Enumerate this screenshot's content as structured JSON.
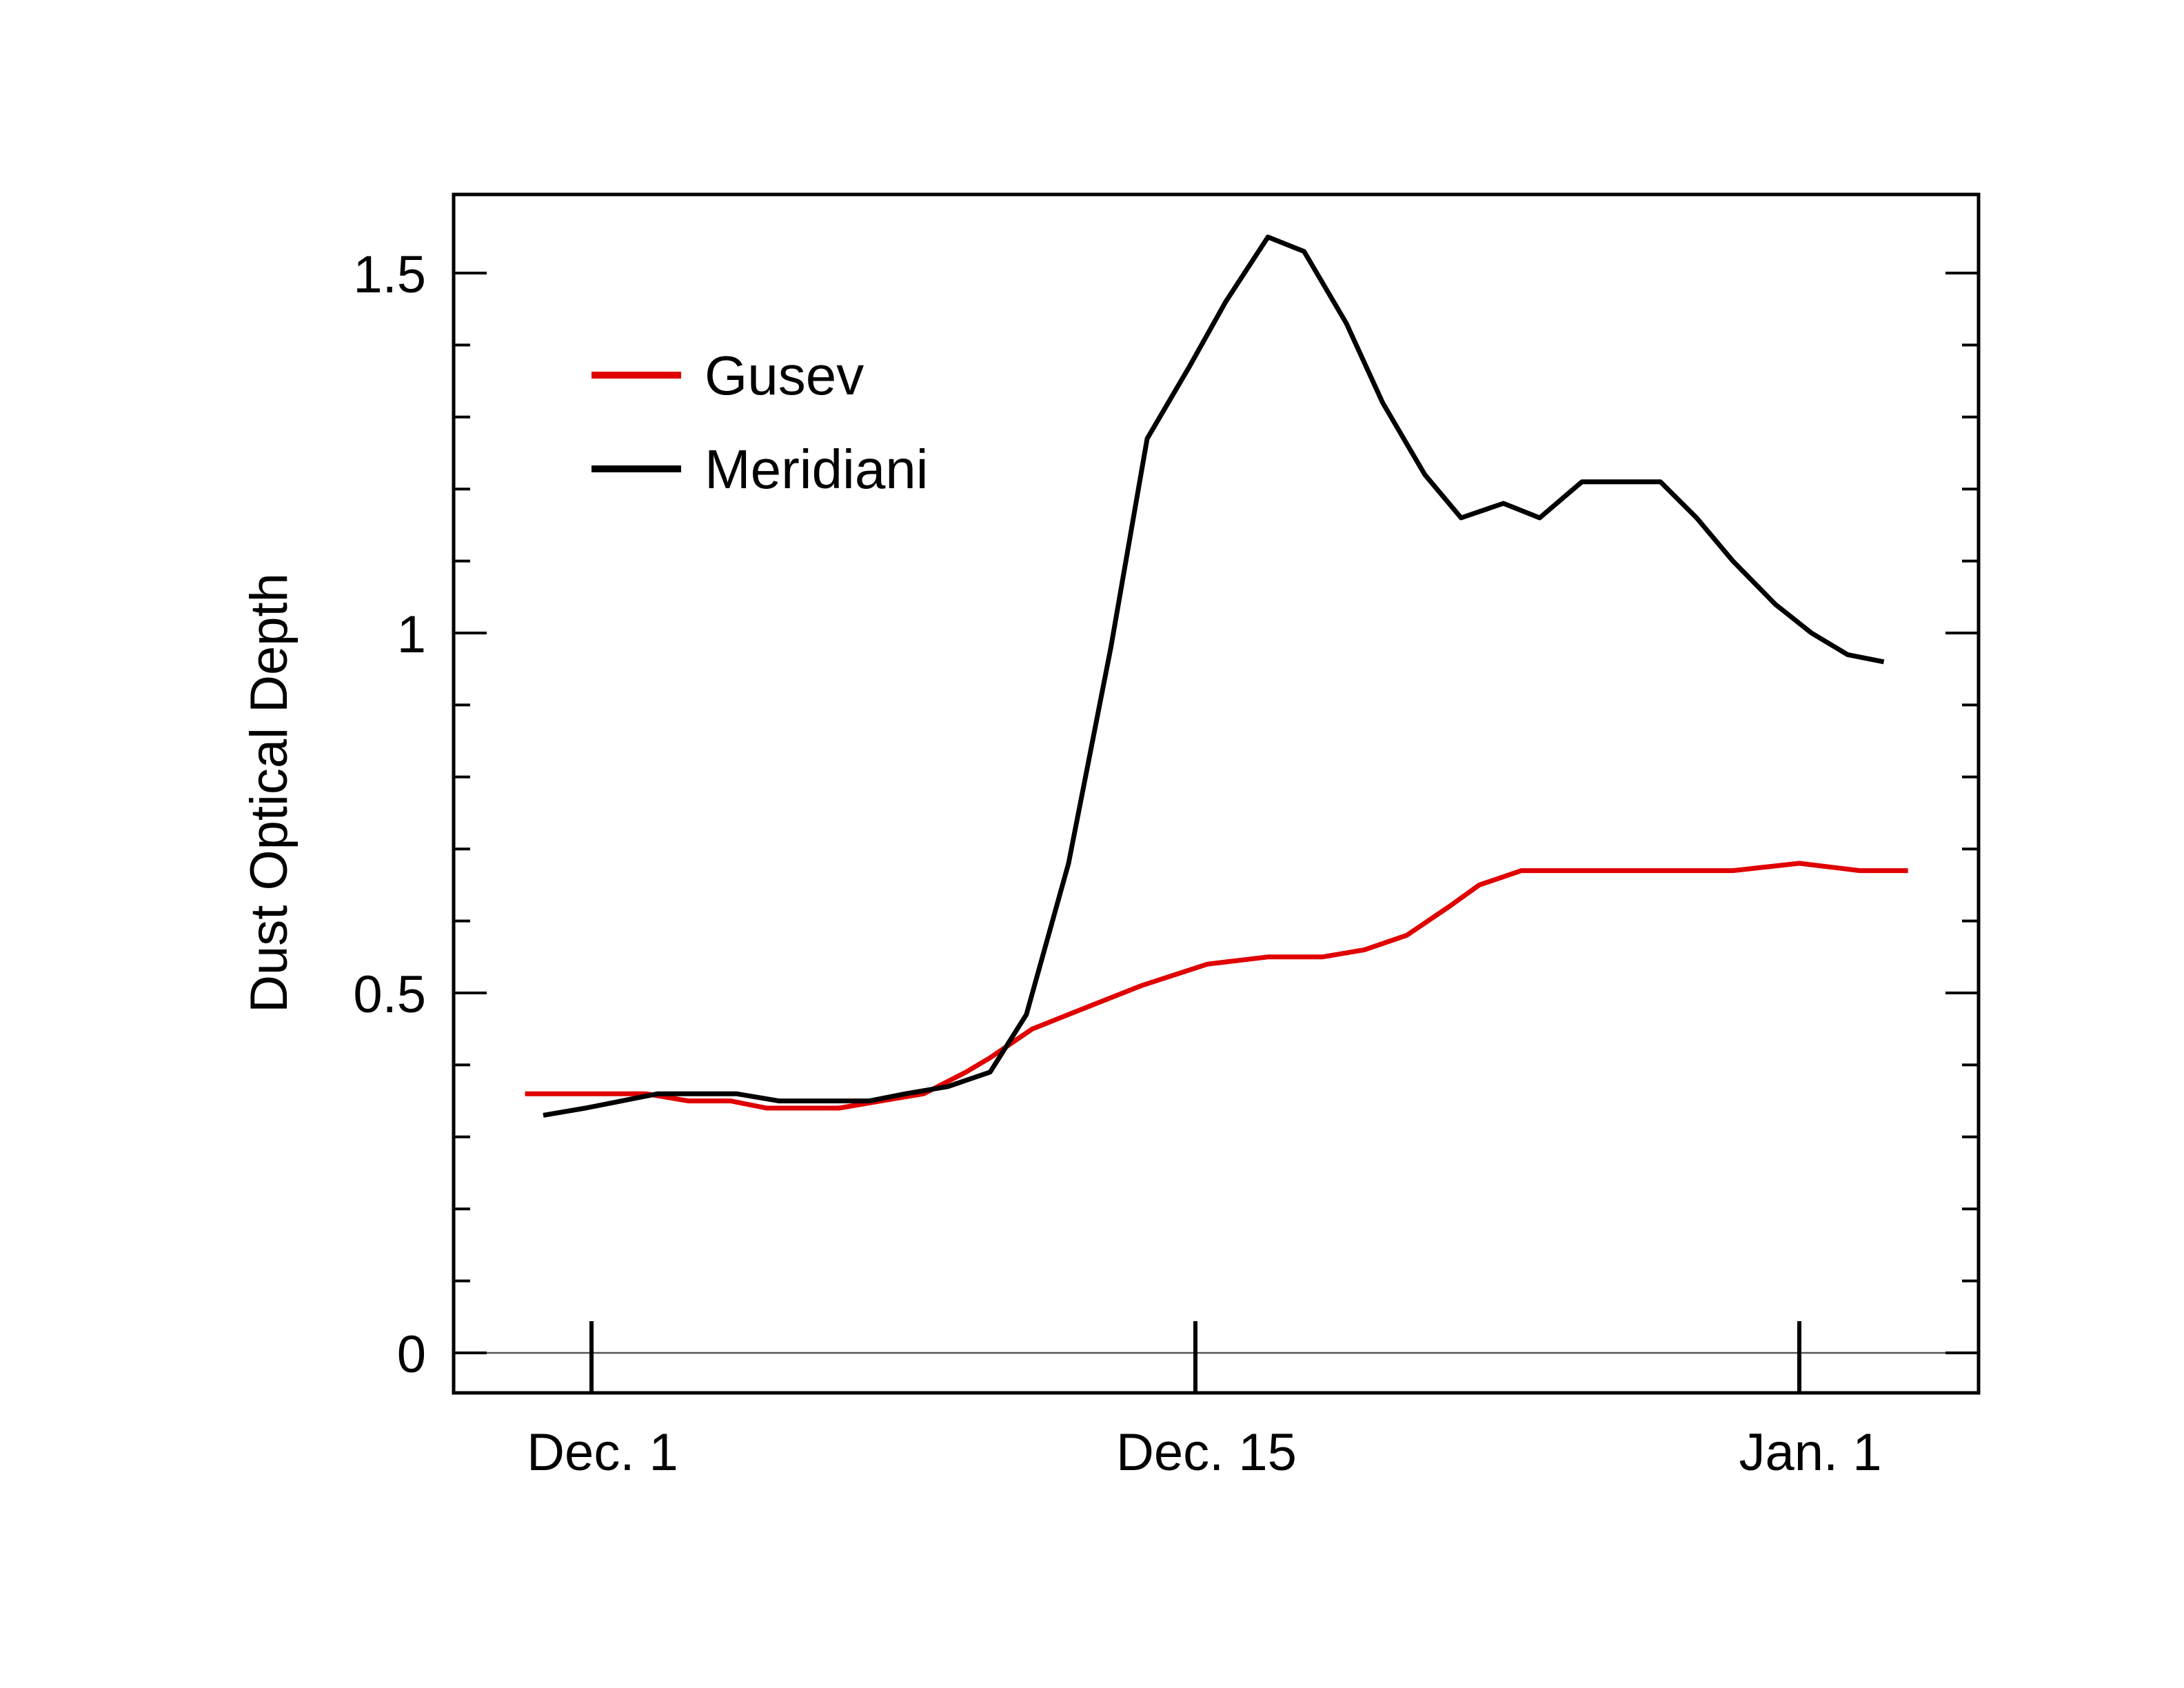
{
  "chart_data": {
    "type": "line",
    "title": "",
    "xlabel": "",
    "ylabel": "Dust Optical Depth",
    "ylim": [
      -0.055,
      1.61
    ],
    "yticks": [
      {
        "value": 0,
        "label": "0"
      },
      {
        "value": 0.5,
        "label": "0.5"
      },
      {
        "value": 1,
        "label": "1"
      },
      {
        "value": 1.5,
        "label": "1.5"
      }
    ],
    "xticks": [
      {
        "label": "Dec. 1"
      },
      {
        "label": "Dec. 15"
      },
      {
        "label": "Jan. 1"
      }
    ],
    "grid": false,
    "zero_line": true,
    "legend": {
      "position": "upper-left",
      "entries": [
        "Gusev",
        "Meridiani"
      ]
    },
    "series": [
      {
        "name": "Gusev",
        "color": "#e00000",
        "x": [
          -0.11,
          -0.05,
          0.02,
          0.09,
          0.16,
          0.23,
          0.29,
          0.35,
          0.41,
          0.48,
          0.55,
          0.62,
          0.66,
          0.73,
          0.82,
          0.91,
          1.02,
          1.12,
          1.21,
          1.28,
          1.35,
          1.42,
          1.47,
          1.54,
          1.61,
          1.68,
          1.75,
          1.82,
          1.89,
          2.0,
          2.1,
          2.18
        ],
        "values": [
          0.36,
          0.36,
          0.36,
          0.36,
          0.35,
          0.35,
          0.34,
          0.34,
          0.34,
          0.35,
          0.36,
          0.39,
          0.41,
          0.45,
          0.48,
          0.51,
          0.54,
          0.55,
          0.55,
          0.56,
          0.58,
          0.62,
          0.65,
          0.67,
          0.67,
          0.67,
          0.67,
          0.67,
          0.67,
          0.68,
          0.67,
          0.67
        ]
      },
      {
        "name": "Meridiani",
        "color": "#000000",
        "x": [
          -0.08,
          -0.01,
          0.05,
          0.11,
          0.18,
          0.24,
          0.31,
          0.39,
          0.46,
          0.52,
          0.59,
          0.66,
          0.72,
          0.79,
          0.86,
          0.92,
          0.99,
          1.05,
          1.12,
          1.18,
          1.25,
          1.31,
          1.38,
          1.44,
          1.51,
          1.57,
          1.64,
          1.7,
          1.77,
          1.83,
          1.89,
          1.96,
          2.02,
          2.08,
          2.14
        ],
        "values": [
          0.33,
          0.34,
          0.35,
          0.36,
          0.36,
          0.36,
          0.35,
          0.35,
          0.35,
          0.36,
          0.37,
          0.39,
          0.47,
          0.68,
          0.98,
          1.27,
          1.37,
          1.46,
          1.55,
          1.53,
          1.43,
          1.32,
          1.22,
          1.16,
          1.18,
          1.16,
          1.21,
          1.21,
          1.21,
          1.16,
          1.1,
          1.04,
          1.0,
          0.97,
          0.96
        ]
      }
    ],
    "x_note": "x in tick units: 0 = Dec. 1, 1 = Dec. 15, 2 = Jan. 1"
  }
}
